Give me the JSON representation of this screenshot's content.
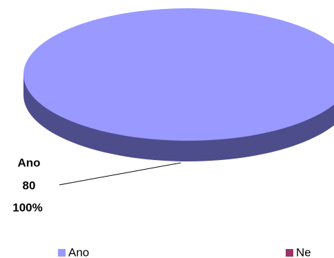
{
  "chart_data": {
    "type": "pie",
    "categories": [
      "Ano",
      "Ne"
    ],
    "values": [
      80,
      0
    ],
    "percents": [
      {
        "value": 100,
        "label": "100%"
      },
      null
    ],
    "colors": [
      "#9999ff",
      "#993366"
    ],
    "side_colors": [
      "#4d4d8c",
      "#4d1a33"
    ],
    "legend": "bottom"
  }
}
